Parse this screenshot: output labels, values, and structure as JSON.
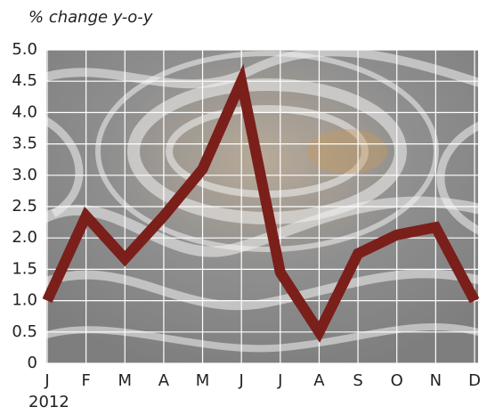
{
  "chart_data": {
    "type": "line",
    "title": "% change y-o-y",
    "year_label": "2012",
    "categories": [
      "J",
      "F",
      "M",
      "A",
      "M",
      "J",
      "J",
      "A",
      "S",
      "O",
      "N",
      "D"
    ],
    "values": [
      1.0,
      2.35,
      1.67,
      2.35,
      3.1,
      4.5,
      1.45,
      0.5,
      1.75,
      2.05,
      2.17,
      1.0
    ],
    "color": "#7b1f1b",
    "ylim": [
      0,
      5
    ],
    "yticks": [
      0,
      0.5,
      {
        "value": 1,
        "label": "1.0"
      },
      1.5,
      {
        "value": 2,
        "label": "2.0"
      },
      2.5,
      {
        "value": 3,
        "label": "3.0"
      },
      3.5,
      {
        "value": 4,
        "label": "4.0"
      },
      4.5,
      {
        "value": 5,
        "label": "5.0"
      }
    ],
    "grid": true
  }
}
